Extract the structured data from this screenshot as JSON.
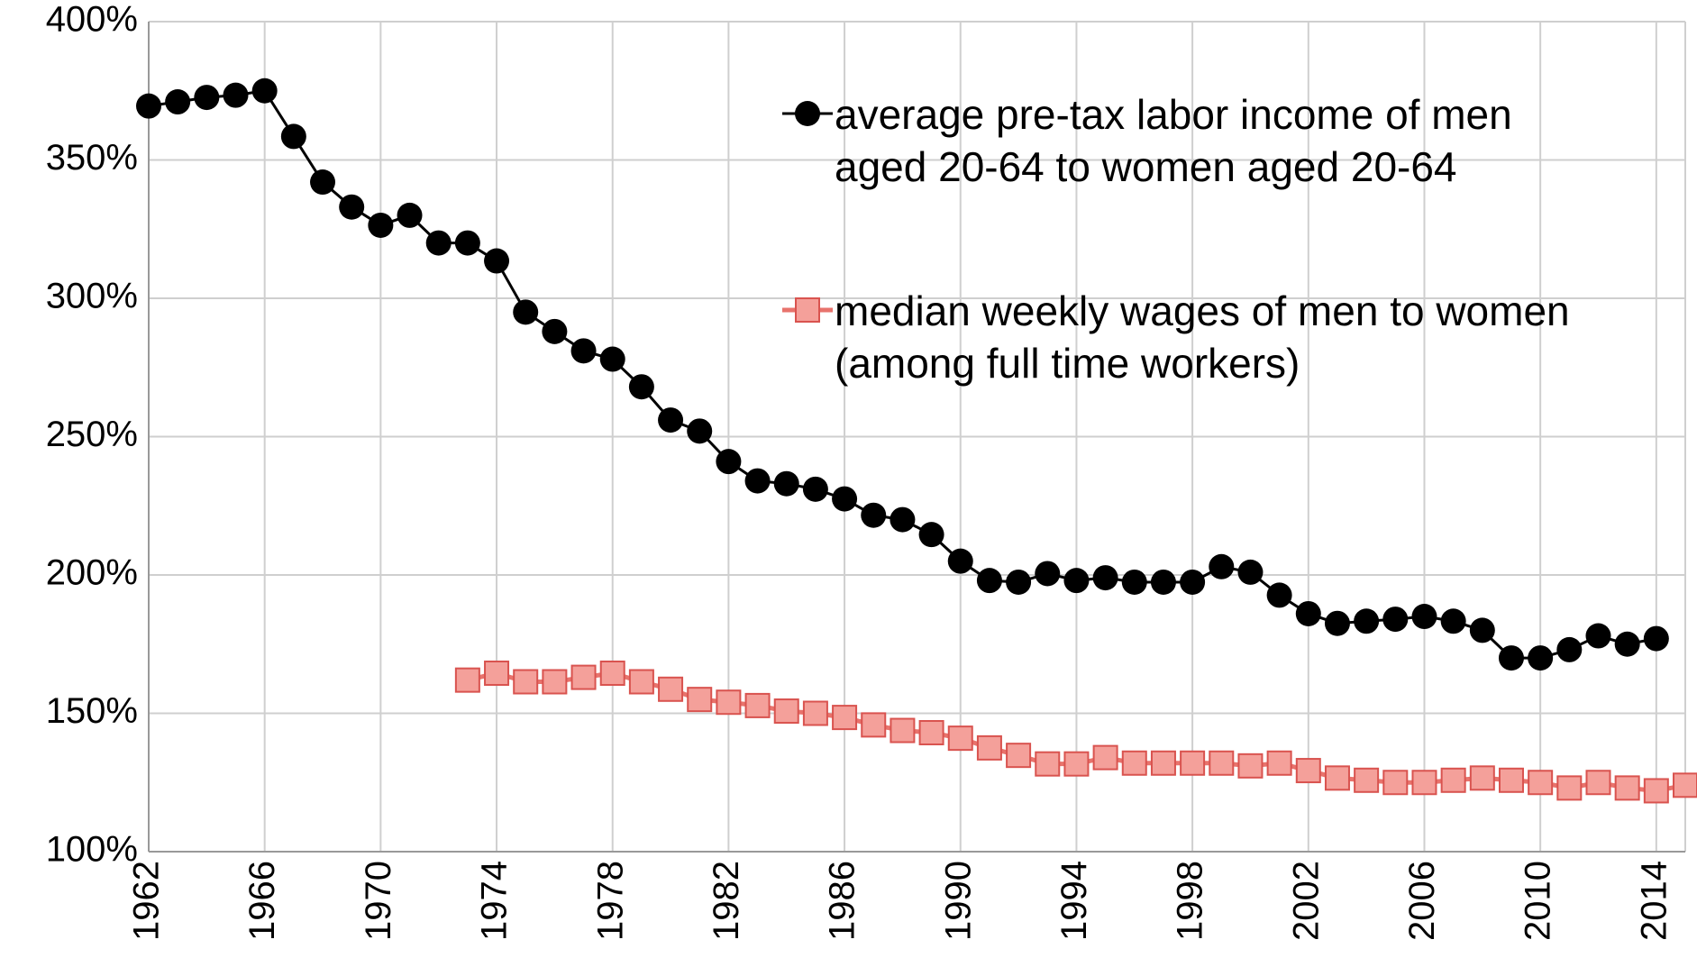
{
  "chart_data": {
    "type": "line",
    "x": [
      1962,
      1963,
      1964,
      1965,
      1966,
      1967,
      1968,
      1969,
      1970,
      1971,
      1972,
      1973,
      1974,
      1975,
      1976,
      1977,
      1978,
      1979,
      1980,
      1981,
      1982,
      1983,
      1984,
      1985,
      1986,
      1987,
      1988,
      1989,
      1990,
      1991,
      1992,
      1993,
      1994,
      1995,
      1996,
      1997,
      1998,
      1999,
      2000,
      2001,
      2002,
      2003,
      2004,
      2005,
      2006,
      2007,
      2008,
      2009,
      2010,
      2011,
      2012,
      2013,
      2014,
      2015
    ],
    "series": [
      {
        "name": "average pre-tax labor income of men aged 20-64 to women aged 20-64",
        "color": "#000000",
        "marker": "circle",
        "values": [
          369.5,
          371,
          372.6,
          373.4,
          375,
          358.5,
          342,
          333,
          326.4,
          330,
          320,
          320,
          313.5,
          295,
          288,
          281,
          278,
          268,
          256,
          252,
          241,
          234,
          233,
          231,
          227.5,
          221.6,
          220,
          214.6,
          205,
          198,
          197.4,
          200.5,
          198,
          199,
          197.4,
          197.4,
          197.4,
          203,
          201,
          192.7,
          186,
          182.5,
          183.3,
          184,
          185,
          183.3,
          180,
          170,
          170,
          173,
          178,
          175,
          177,
          null
        ]
      },
      {
        "name": "median weekly wages of men to women (among full time workers)",
        "color": "#e8736c",
        "marker": "square",
        "values": [
          null,
          null,
          null,
          null,
          null,
          null,
          null,
          null,
          null,
          null,
          null,
          162,
          164.5,
          161.4,
          161.4,
          163,
          164.5,
          161.4,
          158.7,
          155,
          154,
          152.8,
          150.8,
          150,
          148.5,
          145.8,
          143.8,
          143,
          141,
          137.5,
          134.8,
          131.7,
          131.7,
          134,
          132,
          132,
          132,
          132,
          131,
          132,
          129.3,
          126.6,
          125.8,
          125,
          125,
          125.8,
          126.6,
          125.8,
          125,
          123,
          125,
          123,
          122,
          124
        ]
      }
    ],
    "xlim": [
      1962,
      2015
    ],
    "xticks": [
      1962,
      1966,
      1970,
      1974,
      1978,
      1982,
      1986,
      1990,
      1994,
      1998,
      2002,
      2006,
      2010,
      2014
    ],
    "ylim": [
      100,
      400
    ],
    "yticks": [
      {
        "value": 100,
        "label": "100%"
      },
      {
        "value": 150,
        "label": "150%"
      },
      {
        "value": 200,
        "label": "200%"
      },
      {
        "value": 250,
        "label": "250%"
      },
      {
        "value": 300,
        "label": "300%"
      },
      {
        "value": 350,
        "label": "350%"
      },
      {
        "value": 400,
        "label": "400%"
      }
    ],
    "grid": true
  }
}
